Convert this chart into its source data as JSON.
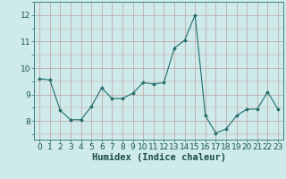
{
  "x": [
    0,
    1,
    2,
    3,
    4,
    5,
    6,
    7,
    8,
    9,
    10,
    11,
    12,
    13,
    14,
    15,
    16,
    17,
    18,
    19,
    20,
    21,
    22,
    23
  ],
  "y": [
    9.6,
    9.55,
    8.4,
    8.05,
    8.05,
    8.55,
    9.25,
    8.85,
    8.85,
    9.05,
    9.45,
    9.4,
    9.45,
    10.75,
    11.05,
    12.0,
    8.2,
    7.55,
    7.7,
    8.2,
    8.45,
    8.45,
    9.1,
    8.45
  ],
  "line_color": "#1f6b6b",
  "marker": "D",
  "marker_size": 2.0,
  "bg_color": "#ceeaea",
  "grid_color_major": "#c0a0a0",
  "xlabel": "Humidex (Indice chaleur)",
  "xlabel_fontsize": 7.5,
  "tick_fontsize": 6.5,
  "ylim": [
    7.3,
    12.5
  ],
  "yticks": [
    8,
    9,
    10,
    11,
    12
  ],
  "xlim": [
    -0.5,
    23.5
  ]
}
